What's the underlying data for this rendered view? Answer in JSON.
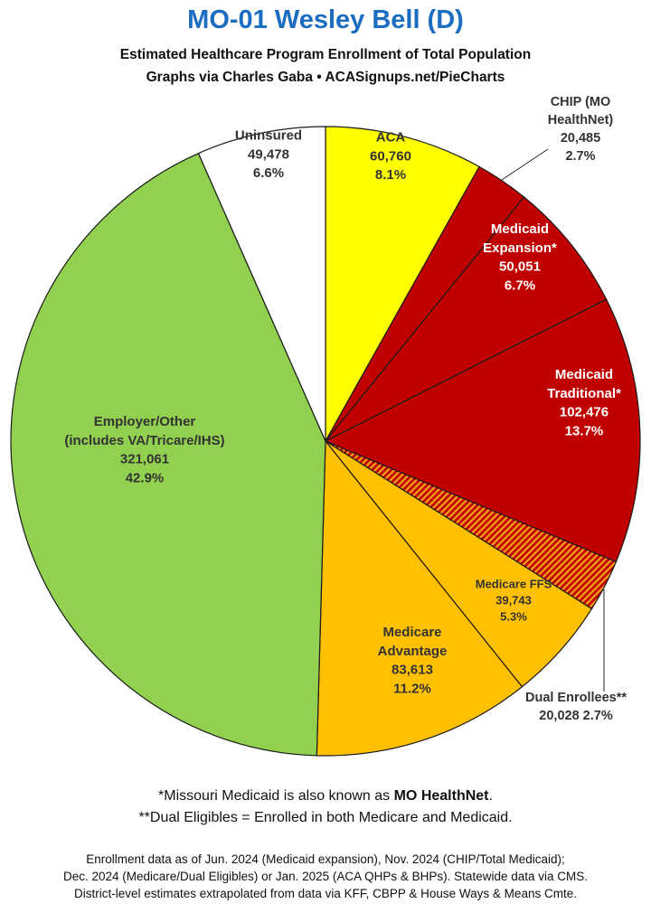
{
  "header": {
    "title": "MO-01 Wesley Bell (D)",
    "subtitle": "Estimated Healthcare Program Enrollment of Total Population",
    "credit": "Graphs via Charles Gaba  •  ACASignups.net/PieCharts"
  },
  "chart_data": {
    "type": "pie",
    "start_angle": "12 o'clock",
    "direction": "clockwise",
    "slices": [
      {
        "label": "ACA",
        "value": 60760,
        "percent": "8.1%",
        "value_text": "60,760",
        "color": "#ffff00",
        "text_color": "#333333"
      },
      {
        "label": "CHIP (MO HealthNet)",
        "value": 20485,
        "percent": "2.7%",
        "value_text": "20,485",
        "color": "#c00000",
        "text_color": "#333333"
      },
      {
        "label": "Medicaid Expansion*",
        "value": 50051,
        "percent": "6.7%",
        "value_text": "50,051",
        "color": "#c00000",
        "text_color": "#ffffff"
      },
      {
        "label": "Medicaid Traditional*",
        "value": 102476,
        "percent": "13.7%",
        "value_text": "102,476",
        "color": "#c00000",
        "text_color": "#ffffff"
      },
      {
        "label": "Dual Enrollees**",
        "value": 20028,
        "percent": "2.7%",
        "value_text": "20,028",
        "color": "#c00000",
        "pattern": "orange-hatch",
        "text_color": "#333333"
      },
      {
        "label": "Medicare FFS",
        "value": 39743,
        "percent": "5.3%",
        "value_text": "39,743",
        "color": "#ffc000",
        "text_color": "#333333"
      },
      {
        "label": "Medicare Advantage",
        "value": 83613,
        "percent": "11.2%",
        "value_text": "83,613",
        "color": "#ffc000",
        "text_color": "#333333"
      },
      {
        "label": "Employer/Other (includes VA/Tricare/IHS)",
        "value": 321061,
        "percent": "42.9%",
        "value_text": "321,061",
        "color": "#92d050",
        "text_color": "#333333"
      },
      {
        "label": "Uninsured",
        "value": 49478,
        "percent": "6.6%",
        "value_text": "49,478",
        "color": "#ffffff",
        "text_color": "#333333"
      }
    ]
  },
  "footer": {
    "note1_prefix": "*Missouri Medicaid is also known as ",
    "note1_bold": "MO HealthNet",
    "note1_suffix": ".",
    "note2": "**Dual Eligibles = Enrolled in both Medicare and Medicaid.",
    "src1": "Enrollment data as of Jun. 2024 (Medicaid expansion), Nov. 2024 (CHIP/Total Medicaid);",
    "src2": "Dec. 2024 (Medicare/Dual Eligibles) or Jan. 2025 (ACA QHPs & BHPs). Statewide data via CMS.",
    "src3": "District-level estimates extrapolated from data via KFF, CBPP & House Ways & Means Cmte."
  }
}
